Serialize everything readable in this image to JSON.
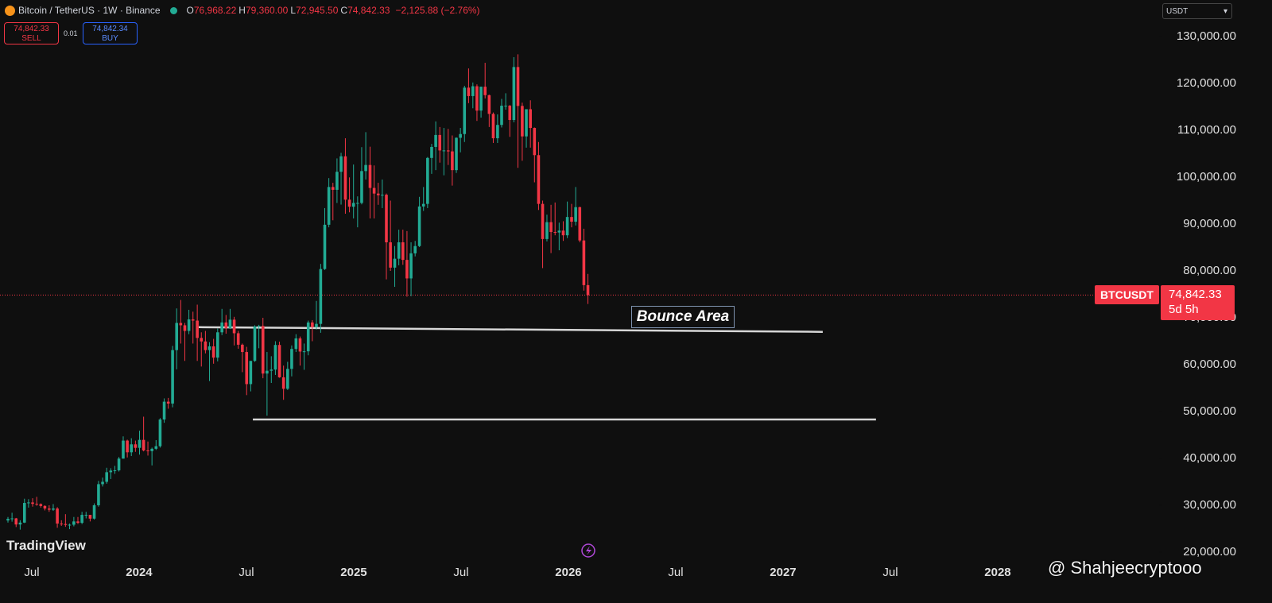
{
  "header": {
    "symbol": "Bitcoin / TetherUS · 1W · Binance",
    "ohlc": [
      {
        "key": "O",
        "value": "76,968.22"
      },
      {
        "key": "H",
        "value": "79,360.00"
      },
      {
        "key": "L",
        "value": "72,945.50"
      },
      {
        "key": "C",
        "value": "74,842.33"
      }
    ],
    "change": "−2,125.88 (−2.76%)"
  },
  "trade": {
    "sell": {
      "price": "74,842.33",
      "label": "SELL"
    },
    "spread": "0.01",
    "buy": {
      "price": "74,842.34",
      "label": "BUY"
    }
  },
  "currency": "USDT",
  "logo": "TradingView",
  "watermark": "@ Shahjeecryptooo",
  "chart_data": {
    "type": "candlestick",
    "up_color": "#22ab94",
    "down_color": "#f23645",
    "grid": false,
    "xlim": [
      2023.352,
      2028.752
    ],
    "xticks": [
      {
        "value": 2023.5,
        "label": "Jul"
      },
      {
        "value": 2024,
        "label": "2024"
      },
      {
        "value": 2024.5,
        "label": "Jul"
      },
      {
        "value": 2025,
        "label": "2025"
      },
      {
        "value": 2025.5,
        "label": "Jul"
      },
      {
        "value": 2026,
        "label": "2026"
      },
      {
        "value": 2026.5,
        "label": "Jul"
      },
      {
        "value": 2027,
        "label": "2027"
      },
      {
        "value": 2027.5,
        "label": "Jul"
      },
      {
        "value": 2028,
        "label": "2028"
      }
    ],
    "ylim": [
      18300,
      137800
    ],
    "yticks": [
      {
        "value": 20000,
        "label": "20,000.00"
      },
      {
        "value": 30000,
        "label": "30,000.00"
      },
      {
        "value": 40000,
        "label": "40,000.00"
      },
      {
        "value": 50000,
        "label": "50,000.00"
      },
      {
        "value": 60000,
        "label": "60,000.00"
      },
      {
        "value": 70000,
        "label": "70,000.00"
      },
      {
        "value": 80000,
        "label": "80,000.00"
      },
      {
        "value": 90000,
        "label": "90,000.00"
      },
      {
        "value": 100000,
        "label": "100,000.00"
      },
      {
        "value": 110000,
        "label": "110,000.00"
      },
      {
        "value": 120000,
        "label": "120,000.00"
      },
      {
        "value": 130000,
        "label": "130,000.00"
      }
    ],
    "x": [
      2023.389,
      2023.408,
      2023.427,
      2023.446,
      2023.466,
      2023.485,
      2023.504,
      2023.523,
      2023.542,
      2023.561,
      2023.581,
      2023.6,
      2023.619,
      2023.638,
      2023.657,
      2023.676,
      2023.696,
      2023.715,
      2023.734,
      2023.753,
      2023.772,
      2023.791,
      2023.811,
      2023.83,
      2023.849,
      2023.868,
      2023.887,
      2023.906,
      2023.926,
      2023.945,
      2023.964,
      2023.983,
      2024.002,
      2024.021,
      2024.041,
      2024.06,
      2024.079,
      2024.098,
      2024.117,
      2024.136,
      2024.156,
      2024.175,
      2024.194,
      2024.213,
      2024.232,
      2024.251,
      2024.271,
      2024.29,
      2024.309,
      2024.328,
      2024.347,
      2024.366,
      2024.386,
      2024.405,
      2024.424,
      2024.443,
      2024.462,
      2024.481,
      2024.501,
      2024.52,
      2024.539,
      2024.558,
      2024.577,
      2024.596,
      2024.616,
      2024.635,
      2024.654,
      2024.673,
      2024.692,
      2024.711,
      2024.731,
      2024.75,
      2024.769,
      2024.788,
      2024.807,
      2024.826,
      2024.846,
      2024.865,
      2024.884,
      2024.903,
      2024.922,
      2024.941,
      2024.961,
      2024.98,
      2024.999,
      2025.018,
      2025.037,
      2025.056,
      2025.076,
      2025.095,
      2025.114,
      2025.133,
      2025.152,
      2025.171,
      2025.191,
      2025.21,
      2025.229,
      2025.248,
      2025.267,
      2025.286,
      2025.306,
      2025.325,
      2025.344,
      2025.363,
      2025.382,
      2025.401,
      2025.42,
      2025.44,
      2025.459,
      2025.478,
      2025.497,
      2025.516,
      2025.535,
      2025.555,
      2025.574,
      2025.593,
      2025.612,
      2025.631,
      2025.65,
      2025.67,
      2025.689,
      2025.708,
      2025.727,
      2025.746,
      2025.765,
      2025.785,
      2025.804,
      2025.823,
      2025.842,
      2025.861,
      2025.88,
      2025.9,
      2025.919,
      2025.938,
      2025.957,
      2025.976,
      2025.995,
      2026.015,
      2026.034,
      2026.053,
      2026.072,
      2026.091
    ],
    "open": [
      26750,
      27100,
      27200,
      25900,
      26300,
      30500,
      30600,
      30300,
      30250,
      29850,
      29300,
      29050,
      29300,
      26100,
      26000,
      25800,
      25850,
      26550,
      26250,
      27950,
      27950,
      27150,
      30000,
      34500,
      35000,
      37050,
      37400,
      37450,
      39950,
      43800,
      41300,
      43000,
      42250,
      43950,
      41700,
      41550,
      42050,
      42600,
      48300,
      52100,
      51700,
      63100,
      68900,
      68400,
      67200,
      69650,
      69400,
      65700,
      64950,
      63100,
      63900,
      61500,
      66900,
      69000,
      67800,
      69600,
      66700,
      64250,
      62700,
      55850,
      60800,
      68150,
      68250,
      58100,
      58700,
      58950,
      64200,
      57300,
      54850,
      59100,
      63350,
      65600,
      62800,
      62850,
      69000,
      68000,
      68700,
      80400,
      89850,
      97900,
      97300,
      101150,
      104450,
      95200,
      93700,
      94500,
      94500,
      101300,
      102600,
      97700,
      96500,
      96150,
      96250,
      86100,
      80700,
      82600,
      86100,
      82350,
      78400,
      83750,
      85300,
      93750,
      94300,
      104100,
      106450,
      109000,
      105700,
      105700,
      105500,
      101500,
      108400,
      109200,
      119100,
      117300,
      119400,
      114200,
      119300,
      117500,
      113500,
      108300,
      111150,
      115250,
      115250,
      112200,
      123500,
      115200,
      108700,
      114500,
      110500,
      104700,
      94300,
      86800,
      90400,
      88300,
      88200,
      88600,
      87600,
      91500,
      90500,
      93600,
      86500,
      76968.22
    ],
    "high": [
      27500,
      28400,
      27300,
      26800,
      31400,
      31300,
      31500,
      31800,
      30400,
      30000,
      30000,
      30250,
      29600,
      26800,
      28100,
      26100,
      27500,
      27500,
      28600,
      28600,
      27950,
      30400,
      35200,
      35900,
      38000,
      37900,
      38400,
      40300,
      44700,
      44000,
      44300,
      43800,
      45900,
      48900,
      43600,
      42300,
      43900,
      48600,
      52800,
      52900,
      64000,
      72000,
      73800,
      68900,
      71700,
      71300,
      72800,
      66900,
      67200,
      64800,
      65500,
      67700,
      71900,
      70600,
      71900,
      70200,
      67200,
      64500,
      63800,
      60800,
      68400,
      68500,
      70000,
      62700,
      61800,
      65000,
      64900,
      59800,
      60600,
      64100,
      66500,
      66000,
      64500,
      69400,
      69500,
      73600,
      81500,
      93400,
      99800,
      98800,
      104000,
      105200,
      108300,
      99950,
      102700,
      95900,
      106400,
      109600,
      106500,
      102500,
      98800,
      99500,
      96500,
      95000,
      85300,
      88800,
      88800,
      88500,
      86100,
      86400,
      95800,
      97900,
      104300,
      107100,
      111900,
      110700,
      110500,
      110300,
      108900,
      108500,
      110500,
      119500,
      123200,
      120200,
      119800,
      119300,
      124400,
      117600,
      113800,
      113400,
      116700,
      117900,
      115400,
      125600,
      126200,
      115900,
      114000,
      116400,
      110600,
      107500,
      95000,
      92000,
      94100,
      94600,
      90300,
      90600,
      94800,
      94300,
      97900,
      93700,
      89000,
      79360
    ],
    "low": [
      26300,
      26500,
      25350,
      24800,
      26200,
      29500,
      29700,
      29900,
      29500,
      28900,
      28600,
      28800,
      25200,
      25600,
      25400,
      24900,
      25500,
      26000,
      25980,
      27200,
      26550,
      26950,
      29700,
      34000,
      34600,
      35600,
      36700,
      37200,
      39950,
      40200,
      40500,
      41400,
      40800,
      41500,
      40600,
      38500,
      41800,
      42300,
      47600,
      50600,
      50900,
      59000,
      64500,
      60800,
      66500,
      64500,
      60800,
      59600,
      62400,
      56500,
      60200,
      60700,
      66300,
      66600,
      67600,
      64100,
      63400,
      58400,
      53500,
      54300,
      60600,
      63500,
      57100,
      49100,
      56100,
      57800,
      57200,
      52500,
      54600,
      57500,
      62700,
      59800,
      58900,
      62000,
      65000,
      67500,
      66800,
      80200,
      89300,
      90800,
      94500,
      94150,
      92200,
      92500,
      91200,
      89300,
      94200,
      99500,
      91200,
      91200,
      94100,
      93400,
      78200,
      80000,
      76600,
      81200,
      81300,
      74500,
      74600,
      83100,
      85100,
      92800,
      93400,
      100700,
      101500,
      103100,
      100400,
      102600,
      98200,
      100900,
      105300,
      107500,
      115800,
      114700,
      112000,
      112700,
      116800,
      110700,
      107300,
      107300,
      110600,
      114400,
      108600,
      111700,
      102000,
      103500,
      106300,
      106300,
      98900,
      93000,
      80600,
      86300,
      83800,
      87600,
      84400,
      86400,
      87000,
      89300,
      89700,
      86100,
      75800,
      72945.5
    ],
    "close": [
      27100,
      27200,
      25900,
      26300,
      30500,
      30600,
      30300,
      30250,
      29850,
      29300,
      29050,
      29300,
      26100,
      26000,
      25800,
      25850,
      26550,
      26250,
      27950,
      27950,
      27150,
      30000,
      34500,
      35000,
      37050,
      37400,
      37450,
      39950,
      43800,
      41300,
      43000,
      42250,
      43950,
      41700,
      41550,
      42050,
      42600,
      48300,
      52100,
      51700,
      63100,
      68900,
      68400,
      67200,
      69650,
      69400,
      65700,
      64950,
      63100,
      63900,
      61500,
      66900,
      69000,
      67800,
      69600,
      66700,
      64250,
      62700,
      55850,
      60800,
      68150,
      68250,
      58100,
      58700,
      58950,
      64200,
      57300,
      54850,
      59100,
      63350,
      65600,
      62800,
      62850,
      69000,
      68000,
      68700,
      80400,
      89850,
      97900,
      97300,
      101150,
      104450,
      95200,
      93700,
      94500,
      94500,
      101300,
      102600,
      97700,
      96500,
      96150,
      96250,
      86100,
      80700,
      82600,
      86100,
      82350,
      78400,
      83750,
      85300,
      93750,
      94300,
      104100,
      106450,
      109000,
      105700,
      105700,
      105500,
      101500,
      108400,
      109200,
      119100,
      117300,
      119400,
      114200,
      119300,
      117500,
      113500,
      108300,
      111150,
      115250,
      115250,
      112200,
      123500,
      115200,
      108700,
      114500,
      110500,
      104700,
      94300,
      86800,
      90400,
      88300,
      88200,
      88600,
      87600,
      91500,
      90500,
      93600,
      86500,
      76968.22,
      74842.33
    ],
    "drawings": [
      {
        "x": [
          2024.278,
          2027.185
        ],
        "y": [
          68000,
          67000
        ],
        "color": "#d6d6d6"
      },
      {
        "x": [
          2024.53,
          2027.433
        ],
        "y": [
          48300,
          48300
        ],
        "color": "#d6d6d6"
      }
    ],
    "annotation": "Bounce Area",
    "last_price": 74842.33,
    "last_price_label": "74,842.33",
    "last_price_color": "#f23645",
    "symbol_tag": "BTCUSDT",
    "countdown": "5d 5h"
  }
}
